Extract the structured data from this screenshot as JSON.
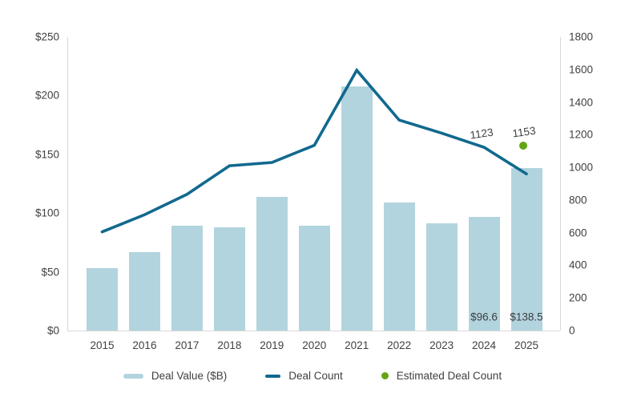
{
  "legend": {
    "deal_value": "Deal Value ($B)",
    "deal_count": "Deal Count",
    "estimated_deal_count": "Estimated Deal Count"
  },
  "colors": {
    "bar": "#b2d4de",
    "line": "#11698e",
    "estimate_dot": "#64a514",
    "axis_line": "#d9d9d9",
    "tick_text": "#414141",
    "label_text": "#3f3f3f"
  },
  "chart_data": {
    "type": "bar",
    "subtype": "combo-bar-line",
    "categories": [
      "2015",
      "2016",
      "2017",
      "2018",
      "2019",
      "2020",
      "2021",
      "2022",
      "2023",
      "2024",
      "2025"
    ],
    "series": [
      {
        "name": "Deal Value ($B)",
        "type": "bar",
        "axis": "left",
        "values": [
          53,
          67,
          89,
          88,
          114,
          89,
          208,
          109,
          91,
          96.6,
          138.5
        ]
      },
      {
        "name": "Deal Count",
        "type": "line",
        "axis": "right",
        "values": [
          605,
          710,
          835,
          1010,
          1030,
          1135,
          1595,
          1290,
          1210,
          1123,
          960
        ]
      },
      {
        "name": "Estimated Deal Count",
        "type": "point",
        "axis": "right",
        "category": "2025",
        "value": 1153
      }
    ],
    "left_axis": {
      "min": 0,
      "max": 250,
      "step": 50,
      "ticks": [
        "$0",
        "$50",
        "$100",
        "$150",
        "$200",
        "$250"
      ]
    },
    "right_axis": {
      "min": 0,
      "max": 1800,
      "step": 200,
      "ticks": [
        "0",
        "200",
        "400",
        "600",
        "800",
        "1000",
        "1200",
        "1400",
        "1600",
        "1800"
      ]
    },
    "grid": false,
    "legend_position": "bottom",
    "title": "",
    "data_labels": [
      {
        "text": "1123",
        "series": "Deal Count",
        "category": "2024",
        "style": "tilt-above-line"
      },
      {
        "text": "1153",
        "series": "Estimated Deal Count",
        "category": "2025",
        "style": "tilt-above-point"
      },
      {
        "text": "$96.6",
        "series": "Deal Value ($B)",
        "category": "2024",
        "style": "inside-bar-bottom"
      },
      {
        "text": "$138.5",
        "series": "Deal Value ($B)",
        "category": "2025",
        "style": "inside-bar-bottom"
      }
    ]
  }
}
